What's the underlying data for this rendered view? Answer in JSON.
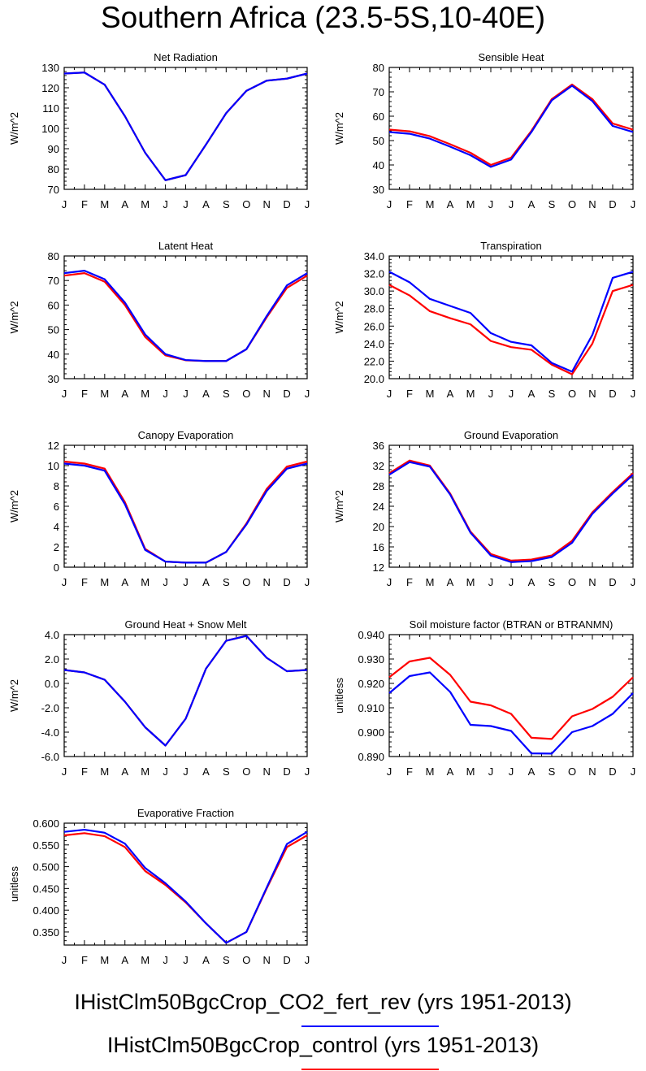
{
  "title": "Southern Africa (23.5-5S,10-40E)",
  "months": [
    "J",
    "F",
    "M",
    "A",
    "M",
    "J",
    "J",
    "A",
    "S",
    "O",
    "N",
    "D",
    "J"
  ],
  "colors": {
    "series_a": "#0000ff",
    "series_b": "#ff0000"
  },
  "legend": [
    {
      "label": "IHistClm50BgcCrop_CO2_fert_rev (yrs 1951-2013)",
      "color": "#0000ff"
    },
    {
      "label": "IHistClm50BgcCrop_control (yrs 1951-2013)",
      "color": "#ff0000"
    }
  ],
  "chart_data": [
    {
      "type": "line",
      "title": "Net Radiation",
      "ylabel": "W/m^2",
      "ylim": [
        70,
        130
      ],
      "yticks": [
        "70",
        "80",
        "90",
        "100",
        "110",
        "120",
        "130"
      ],
      "series": [
        {
          "color": "#ff0000",
          "values": [
            127,
            127.5,
            121.5,
            106,
            88,
            74.5,
            77,
            92,
            107.5,
            118.5,
            123.5,
            124.5,
            127
          ]
        },
        {
          "color": "#0000ff",
          "values": [
            127,
            127.5,
            121.5,
            106,
            88,
            74.5,
            77,
            92,
            107.5,
            118.5,
            123.5,
            124.5,
            127
          ]
        }
      ]
    },
    {
      "type": "line",
      "title": "Sensible Heat",
      "ylabel": "W/m^2",
      "ylim": [
        30,
        80
      ],
      "yticks": [
        "30",
        "40",
        "50",
        "60",
        "70",
        "80"
      ],
      "series": [
        {
          "color": "#ff0000",
          "values": [
            54.5,
            53.8,
            51.8,
            48.5,
            45,
            40,
            43,
            54,
            67,
            73,
            67,
            57,
            54.5
          ]
        },
        {
          "color": "#0000ff",
          "values": [
            53.5,
            52.8,
            50.8,
            47.5,
            44,
            39.2,
            42.2,
            53.5,
            66.5,
            72.5,
            66.2,
            56,
            53.5
          ]
        }
      ]
    },
    {
      "type": "line",
      "title": "Latent Heat",
      "ylabel": "W/m^2",
      "ylim": [
        30,
        80
      ],
      "yticks": [
        "30",
        "40",
        "50",
        "60",
        "70",
        "80"
      ],
      "series": [
        {
          "color": "#ff0000",
          "values": [
            72,
            73,
            69.5,
            60,
            47,
            39.5,
            37.5,
            37.2,
            37.2,
            42,
            55,
            67,
            72
          ]
        },
        {
          "color": "#0000ff",
          "values": [
            73,
            74,
            70.5,
            61,
            48,
            40,
            37.6,
            37.2,
            37.2,
            42,
            55.5,
            68,
            73
          ]
        }
      ]
    },
    {
      "type": "line",
      "title": "Transpiration",
      "ylabel": "W/m^2",
      "ylim": [
        20,
        34
      ],
      "yticks": [
        "20.0",
        "22.0",
        "24.0",
        "26.0",
        "28.0",
        "30.0",
        "32.0",
        "34.0"
      ],
      "series": [
        {
          "color": "#ff0000",
          "values": [
            30.7,
            29.5,
            27.7,
            26.9,
            26.2,
            24.3,
            23.6,
            23.3,
            21.6,
            20.5,
            24,
            30,
            30.7
          ]
        },
        {
          "color": "#0000ff",
          "values": [
            32.2,
            31,
            29.1,
            28.3,
            27.5,
            25.2,
            24.2,
            23.8,
            21.8,
            20.8,
            25,
            31.5,
            32.2
          ]
        }
      ]
    },
    {
      "type": "line",
      "title": "Canopy Evaporation",
      "ylabel": "W/m^2",
      "ylim": [
        0,
        12
      ],
      "yticks": [
        "0",
        "2",
        "4",
        "6",
        "8",
        "10",
        "12"
      ],
      "series": [
        {
          "color": "#ff0000",
          "values": [
            10.4,
            10.2,
            9.7,
            6.4,
            1.8,
            0.55,
            0.45,
            0.45,
            1.5,
            4.3,
            7.7,
            9.9,
            10.4
          ]
        },
        {
          "color": "#0000ff",
          "values": [
            10.2,
            10,
            9.5,
            6.2,
            1.7,
            0.55,
            0.45,
            0.45,
            1.5,
            4.2,
            7.5,
            9.7,
            10.2
          ]
        }
      ]
    },
    {
      "type": "line",
      "title": "Ground Evaporation",
      "ylabel": "W/m^2",
      "ylim": [
        12,
        36
      ],
      "yticks": [
        "12",
        "16",
        "20",
        "24",
        "28",
        "32",
        "36"
      ],
      "series": [
        {
          "color": "#ff0000",
          "values": [
            30.5,
            33,
            32,
            26.5,
            19,
            14.6,
            13.3,
            13.5,
            14.3,
            17.2,
            22.8,
            26.8,
            30.5
          ]
        },
        {
          "color": "#0000ff",
          "values": [
            30.2,
            32.7,
            31.8,
            26.3,
            18.8,
            14.3,
            13,
            13.2,
            14,
            16.8,
            22.5,
            26.5,
            30.2
          ]
        }
      ]
    },
    {
      "type": "line",
      "title": "Ground Heat + Snow Melt",
      "ylabel": "W/m^2",
      "ylim": [
        -6,
        4
      ],
      "yticks": [
        "-6.0",
        "-4.0",
        "-2.0",
        "0.0",
        "2.0",
        "4.0"
      ],
      "series": [
        {
          "color": "#ff0000",
          "values": [
            1.1,
            0.9,
            0.3,
            -1.5,
            -3.6,
            -5.1,
            -2.9,
            1.2,
            3.5,
            3.9,
            2.1,
            1.0,
            1.1
          ]
        },
        {
          "color": "#0000ff",
          "values": [
            1.1,
            0.9,
            0.3,
            -1.5,
            -3.6,
            -5.1,
            -2.9,
            1.2,
            3.5,
            3.9,
            2.1,
            1.0,
            1.1
          ]
        }
      ]
    },
    {
      "type": "line",
      "title": "Soil moisture factor (BTRAN or BTRANMN)",
      "ylabel": "unitless",
      "ylim": [
        0.89,
        0.94
      ],
      "yticks": [
        "0.890",
        "0.900",
        "0.910",
        "0.920",
        "0.930",
        "0.940"
      ],
      "series": [
        {
          "color": "#ff0000",
          "values": [
            0.9225,
            0.929,
            0.9305,
            0.9235,
            0.9125,
            0.911,
            0.9075,
            0.8977,
            0.8972,
            0.9065,
            0.9095,
            0.9145,
            0.9225
          ]
        },
        {
          "color": "#0000ff",
          "values": [
            0.916,
            0.923,
            0.9245,
            0.9165,
            0.903,
            0.9025,
            0.9005,
            0.8913,
            0.8912,
            0.9,
            0.9025,
            0.9075,
            0.916
          ]
        }
      ]
    },
    {
      "type": "line",
      "title": "Evaporative Fraction",
      "ylabel": "unitless",
      "ylim": [
        0.32,
        0.6
      ],
      "yticks": [
        "0.350",
        "0.400",
        "0.450",
        "0.500",
        "0.550",
        "0.600"
      ],
      "series": [
        {
          "color": "#ff0000",
          "values": [
            0.572,
            0.577,
            0.57,
            0.545,
            0.49,
            0.458,
            0.418,
            0.37,
            0.325,
            0.35,
            0.45,
            0.545,
            0.572
          ]
        },
        {
          "color": "#0000ff",
          "values": [
            0.58,
            0.585,
            0.578,
            0.553,
            0.497,
            0.462,
            0.42,
            0.37,
            0.325,
            0.35,
            0.452,
            0.552,
            0.58
          ]
        }
      ]
    }
  ]
}
